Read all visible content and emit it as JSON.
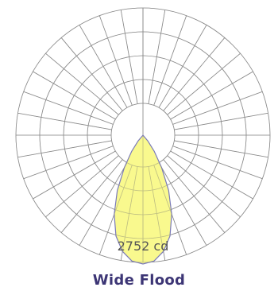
{
  "chart_data": {
    "type": "polar",
    "title": "Wide Flood",
    "peak_label": "2752 cd",
    "peak_value": 2752,
    "unit": "cd",
    "rings": 5,
    "spoke_step_deg": 10,
    "colors": {
      "fill": "#f8f87a",
      "outline": "#7a7ab8",
      "grid": "#8a8a8a",
      "caption": "#3c3575"
    },
    "series": [
      {
        "angle_deg": [
          0,
          5,
          10,
          15,
          20,
          25,
          30,
          35,
          40,
          45
        ],
        "intensity": [
          2752,
          2700,
          2520,
          2230,
          1800,
          1300,
          800,
          420,
          160,
          0
        ]
      }
    ]
  }
}
